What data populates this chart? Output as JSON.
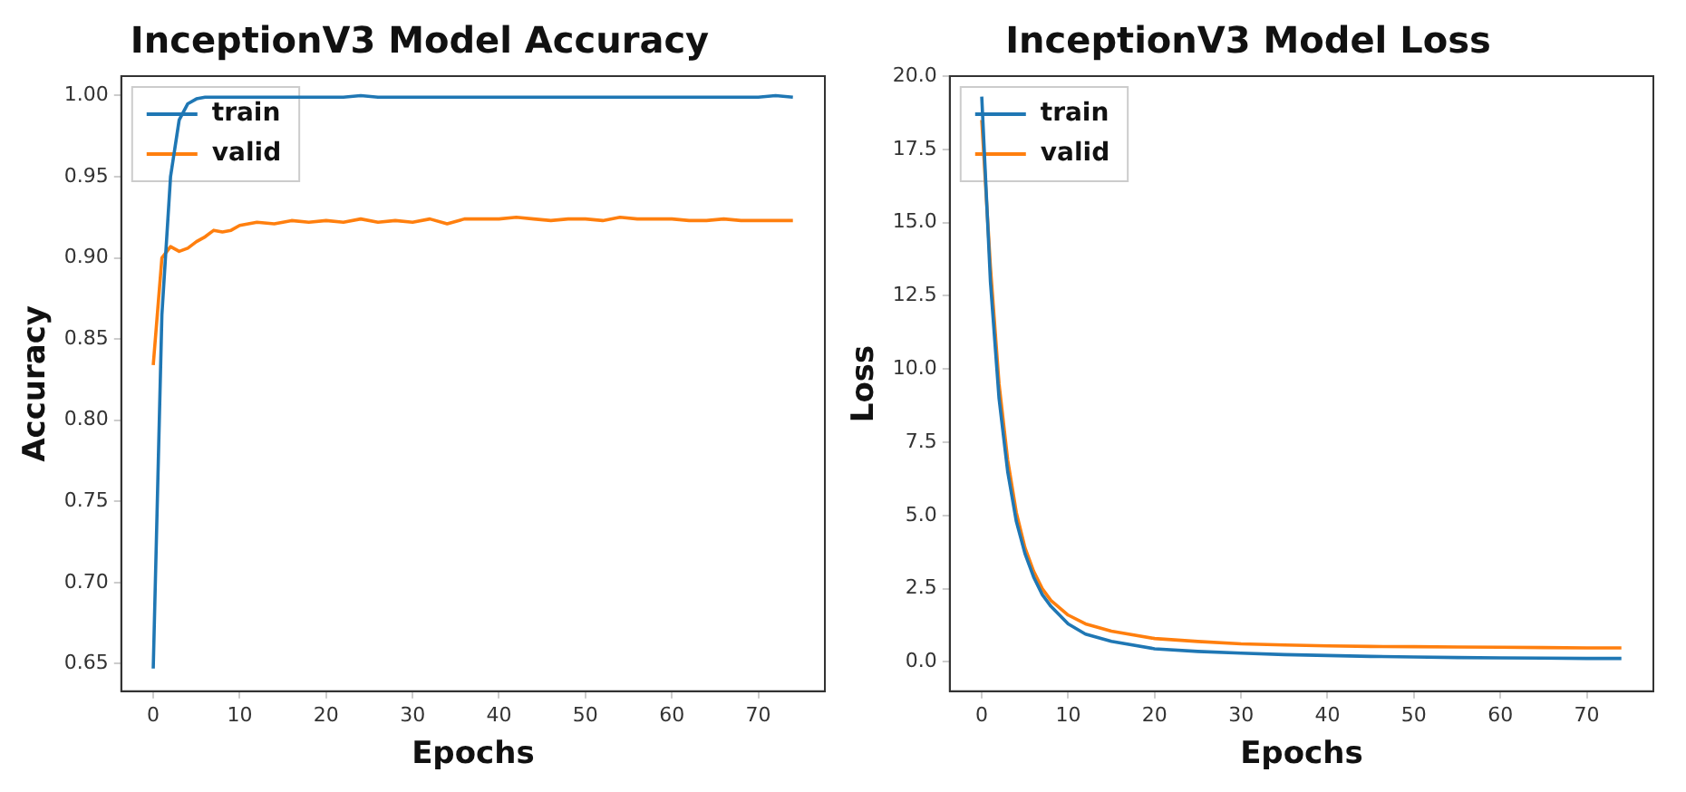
{
  "chart_data": [
    {
      "type": "line",
      "title": "InceptionV3 Model Accuracy",
      "xlabel": "Epochs",
      "ylabel": "Accuracy",
      "legend": "top left",
      "x": [
        0,
        1,
        2,
        3,
        4,
        5,
        6,
        7,
        8,
        9,
        10,
        12,
        14,
        16,
        18,
        20,
        22,
        24,
        26,
        28,
        30,
        32,
        34,
        36,
        38,
        40,
        42,
        44,
        46,
        48,
        50,
        52,
        54,
        56,
        58,
        60,
        62,
        64,
        66,
        68,
        70,
        72,
        74
      ],
      "series": [
        {
          "name": "train",
          "color": "#1f77b4",
          "values": [
            0.647,
            0.865,
            0.95,
            0.985,
            0.995,
            0.998,
            0.999,
            0.999,
            0.999,
            0.999,
            0.999,
            0.999,
            0.999,
            0.999,
            0.999,
            0.999,
            0.999,
            1.0,
            0.999,
            0.999,
            0.999,
            0.999,
            0.999,
            0.999,
            0.999,
            0.999,
            0.999,
            0.999,
            0.999,
            0.999,
            0.999,
            0.999,
            0.999,
            0.999,
            0.999,
            0.999,
            0.999,
            0.999,
            0.999,
            0.999,
            0.999,
            1.0,
            0.999
          ]
        },
        {
          "name": "valid",
          "color": "#ff7f0e",
          "values": [
            0.834,
            0.9,
            0.907,
            0.904,
            0.906,
            0.91,
            0.913,
            0.917,
            0.916,
            0.917,
            0.92,
            0.922,
            0.921,
            0.923,
            0.922,
            0.923,
            0.922,
            0.924,
            0.922,
            0.923,
            0.922,
            0.924,
            0.921,
            0.924,
            0.924,
            0.924,
            0.925,
            0.924,
            0.923,
            0.924,
            0.924,
            0.923,
            0.925,
            0.924,
            0.924,
            0.924,
            0.923,
            0.923,
            0.924,
            0.923,
            0.923,
            0.923,
            0.923
          ]
        }
      ],
      "xlim": [
        -3.7,
        77.7
      ],
      "ylim": [
        0.633,
        1.012
      ],
      "xticks": [
        0,
        10,
        20,
        30,
        40,
        50,
        60,
        70
      ],
      "yticks": [
        {
          "value": 0.65,
          "label": "0.65"
        },
        {
          "value": 0.7,
          "label": "0.70"
        },
        {
          "value": 0.75,
          "label": "0.75"
        },
        {
          "value": 0.8,
          "label": "0.80"
        },
        {
          "value": 0.85,
          "label": "0.85"
        },
        {
          "value": 0.9,
          "label": "0.90"
        },
        {
          "value": 0.95,
          "label": "0.95"
        },
        {
          "value": 1,
          "label": "1.00"
        }
      ]
    },
    {
      "type": "line",
      "title": "InceptionV3 Model Loss",
      "xlabel": "Epochs",
      "ylabel": "Loss",
      "legend": "top left",
      "x": [
        0,
        1,
        2,
        3,
        4,
        5,
        6,
        7,
        8,
        10,
        12,
        15,
        20,
        25,
        30,
        35,
        40,
        45,
        50,
        55,
        60,
        65,
        70,
        74
      ],
      "series": [
        {
          "name": "train",
          "color": "#1f77b4",
          "values": [
            19.3,
            13,
            9,
            6.5,
            4.8,
            3.7,
            2.9,
            2.3,
            1.9,
            1.3,
            0.95,
            0.7,
            0.45,
            0.36,
            0.3,
            0.25,
            0.22,
            0.19,
            0.17,
            0.15,
            0.14,
            0.13,
            0.12,
            0.12
          ]
        },
        {
          "name": "valid",
          "color": "#ff7f0e",
          "values": [
            18.5,
            13.5,
            9.5,
            6.9,
            5.1,
            3.9,
            3.1,
            2.5,
            2.1,
            1.6,
            1.3,
            1.05,
            0.8,
            0.7,
            0.62,
            0.58,
            0.55,
            0.53,
            0.52,
            0.51,
            0.5,
            0.49,
            0.48,
            0.48
          ]
        }
      ],
      "xlim": [
        -3.7,
        77.7
      ],
      "ylim": [
        -1,
        20
      ],
      "xticks": [
        0,
        10,
        20,
        30,
        40,
        50,
        60,
        70
      ],
      "yticks": [
        {
          "value": 0,
          "label": "0.0"
        },
        {
          "value": 2.5,
          "label": "2.5"
        },
        {
          "value": 5,
          "label": "5.0"
        },
        {
          "value": 7.5,
          "label": "7.5"
        },
        {
          "value": 10,
          "label": "10.0"
        },
        {
          "value": 12.5,
          "label": "12.5"
        },
        {
          "value": 15,
          "label": "15.0"
        },
        {
          "value": 17.5,
          "label": "17.5"
        },
        {
          "value": 20,
          "label": "20.0"
        }
      ]
    }
  ]
}
